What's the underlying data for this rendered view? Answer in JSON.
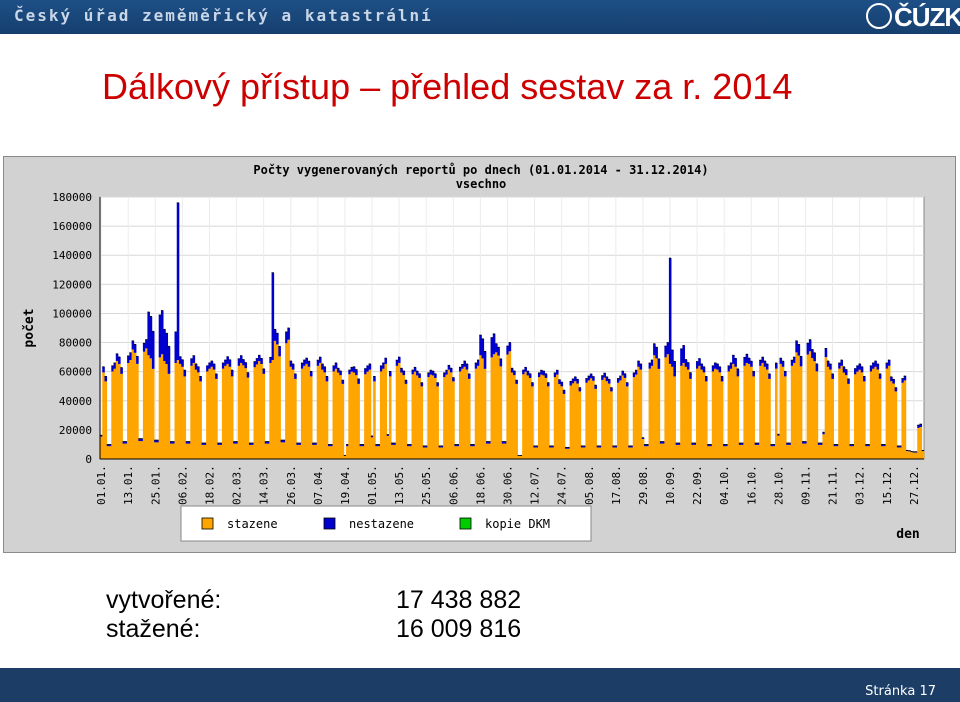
{
  "header": {
    "organization": "Český úřad zeměměřický a katastrální",
    "logo_text": "ČÚZK"
  },
  "slide": {
    "title": "Dálkový přístup – přehled sestav za r. 2014"
  },
  "chart_data": {
    "type": "bar",
    "title": "Počty vygenerovaných reportů po dnech (01.01.2014 - 31.12.2014)",
    "subtitle": "vsechno",
    "ylabel": "počet",
    "xlabel": "den",
    "ylim": [
      0,
      180000
    ],
    "yticks": [
      0,
      20000,
      40000,
      60000,
      80000,
      100000,
      120000,
      140000,
      160000,
      180000
    ],
    "xticks": [
      "01.01.",
      "13.01.",
      "25.01.",
      "06.02.",
      "18.02.",
      "02.03.",
      "14.03.",
      "26.03.",
      "07.04.",
      "19.04.",
      "01.05.",
      "13.05.",
      "25.05.",
      "06.06.",
      "18.06.",
      "30.06.",
      "12.07.",
      "24.07.",
      "05.08.",
      "17.08.",
      "29.08.",
      "10.09.",
      "22.09.",
      "04.10.",
      "16.10.",
      "28.10.",
      "09.11.",
      "21.11.",
      "03.12.",
      "15.12.",
      "27.12."
    ],
    "grid": true,
    "legend_position": "bottom",
    "weekly_weekday_stazene": [
      62000,
      68000,
      76000,
      72000,
      68000,
      66000,
      62000,
      64000,
      66000,
      65000,
      68000,
      82000,
      64000,
      66000,
      62000,
      60000,
      60000,
      62000,
      66000,
      60000,
      58000,
      58000,
      62000,
      64000,
      72000,
      74000,
      60000,
      58000,
      58000,
      52000,
      54000,
      56000,
      54000,
      58000,
      64000,
      72000,
      66000,
      64000,
      62000,
      62000,
      66000,
      66000,
      64000,
      66000,
      74000,
      70000,
      64000,
      60000,
      62000,
      64000,
      54000,
      22000
    ],
    "weekly_weekday_nestazene": [
      4000,
      5000,
      6000,
      30000,
      22000,
      5000,
      4000,
      4000,
      5000,
      4000,
      4000,
      8000,
      4000,
      4000,
      4000,
      3000,
      4000,
      4000,
      4000,
      3000,
      3000,
      3000,
      3000,
      4000,
      14000,
      6000,
      3000,
      3000,
      3000,
      3000,
      3000,
      3000,
      3000,
      3000,
      4000,
      8000,
      12000,
      5000,
      4000,
      4000,
      6000,
      4000,
      4000,
      4000,
      8000,
      6000,
      4000,
      4000,
      4000,
      4000,
      3000,
      2000
    ],
    "weekly_weekend_total": [
      10000,
      12000,
      14000,
      13000,
      12000,
      12000,
      11000,
      11000,
      12000,
      11000,
      12000,
      13000,
      11000,
      11000,
      10000,
      10000,
      10000,
      10000,
      11000,
      10000,
      9000,
      9000,
      10000,
      10000,
      12000,
      12000,
      10000,
      9000,
      9000,
      8000,
      9000,
      9000,
      9000,
      9000,
      10000,
      12000,
      11000,
      11000,
      10000,
      10000,
      11000,
      11000,
      10000,
      11000,
      12000,
      11000,
      10000,
      10000,
      10000,
      10000,
      9000,
      5000
    ],
    "peaks": [
      {
        "date": "04.02.",
        "total": 176000
      },
      {
        "date": "18.03.",
        "total": 128000
      },
      {
        "date": "10.09.",
        "total": 138000
      }
    ],
    "series": [
      {
        "name": "stazene",
        "color": "#ffa500"
      },
      {
        "name": "nestazene",
        "color": "#0000cc"
      },
      {
        "name": "kopie DKM",
        "color": "#00cc00"
      }
    ]
  },
  "stats": {
    "created_label": "vytvořené:",
    "created_value": "17 438 882",
    "downloaded_label": "stažené:",
    "downloaded_value": "16 009 816"
  },
  "footer": {
    "page_label": "Stránka 17"
  }
}
